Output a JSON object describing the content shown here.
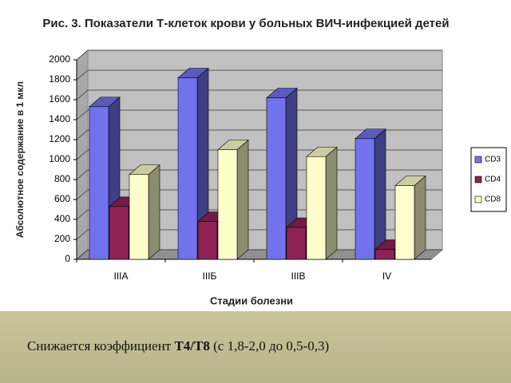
{
  "chart_data": {
    "type": "bar3d",
    "title": "Рис. 3. Показатели Т-клеток крови у больных ВИЧ-инфекцией детей",
    "y_label": "Абсолютное содержание в 1 мкл",
    "x_label": "Стадии болезни",
    "categories": [
      "IIIA",
      "IIIБ",
      "IIIВ",
      "IV"
    ],
    "series": [
      {
        "name": "CD3",
        "color": "#7272ee",
        "values": [
          1530,
          1820,
          1620,
          1210
        ]
      },
      {
        "name": "CD4",
        "color": "#8e2255",
        "values": [
          530,
          380,
          320,
          100
        ]
      },
      {
        "name": "CD8",
        "color": "#ffffcc",
        "values": [
          850,
          1100,
          1030,
          740
        ]
      }
    ],
    "ylim": [
      0,
      2000
    ],
    "yticks": [
      0,
      200,
      400,
      600,
      800,
      1000,
      1200,
      1400,
      1600,
      1800,
      2000
    ],
    "grid": true,
    "legend": "right"
  },
  "caption": {
    "text": "Снижается коэффициент ",
    "bold": "Т4/Т8",
    "tail": " (с 1,8-2,0 до 0,5-0,3)"
  }
}
